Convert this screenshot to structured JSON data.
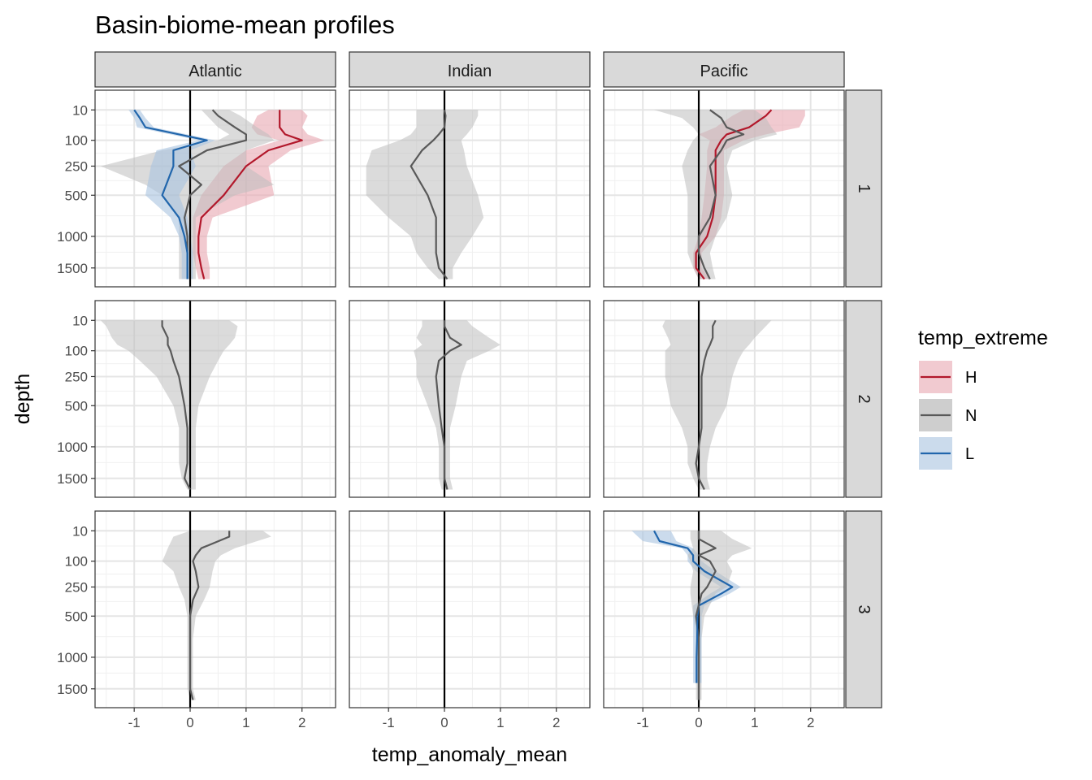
{
  "chart_data": {
    "type": "line",
    "title": "Basin-biome-mean profiles",
    "xlabel": "temp_anomaly_mean",
    "ylabel": "depth",
    "columns": [
      "Atlantic",
      "Indian",
      "Pacific"
    ],
    "rows": [
      "1",
      "2",
      "3"
    ],
    "x_ticks": [
      "-1",
      "0",
      "1",
      "2"
    ],
    "x_tick_values": [
      -1,
      0,
      1,
      2
    ],
    "xlim": [
      -1.7,
      2.6
    ],
    "y_ticks": [
      "10",
      "100",
      "250",
      "500",
      "1000",
      "1500"
    ],
    "y_tick_values": [
      10,
      100,
      250,
      500,
      1000,
      1500
    ],
    "y_scale": "reversed sqrt",
    "ylim": [
      0,
      1800
    ],
    "grid": true,
    "zero_line": true,
    "legend": {
      "title": "temp_extreme",
      "position": "right",
      "entries": [
        {
          "label": "H",
          "color": "#b2182b",
          "fill": "#e7a6b1"
        },
        {
          "label": "N",
          "color": "#595959",
          "fill": "#bdbdbd"
        },
        {
          "label": "L",
          "color": "#2166ac",
          "fill": "#a8c3e0"
        }
      ]
    },
    "panels": [
      {
        "column": "Atlantic",
        "row": "1",
        "series": [
          {
            "name": "H",
            "depth": [
              10,
              20,
              50,
              75,
              100,
              150,
              250,
              500,
              750,
              1000,
              1250,
              1500,
              1700
            ],
            "mean": [
              1.6,
              1.6,
              1.6,
              1.7,
              2.0,
              1.4,
              1.0,
              0.6,
              0.2,
              0.15,
              0.15,
              0.2,
              0.25
            ],
            "lo": [
              1.4,
              1.2,
              1.1,
              1.2,
              1.6,
              1.0,
              0.6,
              0.2,
              0.05,
              0.05,
              0.05,
              0.1,
              0.15
            ],
            "hi": [
              2.0,
              2.1,
              2.0,
              2.1,
              2.4,
              1.8,
              1.4,
              1.5,
              0.4,
              0.3,
              0.3,
              0.35,
              0.35
            ]
          },
          {
            "name": "N",
            "depth": [
              10,
              20,
              50,
              75,
              100,
              150,
              250,
              400,
              500,
              750,
              1000,
              1250,
              1500,
              1700
            ],
            "mean": [
              0.4,
              0.5,
              0.8,
              1.0,
              1.0,
              0.3,
              -0.2,
              0.2,
              0.0,
              -0.1,
              -0.05,
              -0.05,
              -0.05,
              -0.05
            ],
            "lo": [
              0.2,
              0.3,
              0.5,
              0.7,
              0.5,
              -0.5,
              -1.6,
              -0.8,
              -0.5,
              -0.2,
              -0.2,
              -0.2,
              -0.2,
              -0.2
            ],
            "hi": [
              0.7,
              0.9,
              1.2,
              1.4,
              1.5,
              1.0,
              1.0,
              1.5,
              0.8,
              0.1,
              0.1,
              0.1,
              0.1,
              0.1
            ]
          },
          {
            "name": "L",
            "depth": [
              10,
              25,
              50,
              100,
              150,
              250,
              500,
              750,
              1000,
              1250,
              1500,
              1700
            ],
            "mean": [
              -1.0,
              -0.9,
              -0.8,
              0.3,
              -0.3,
              -0.3,
              -0.5,
              -0.2,
              -0.1,
              -0.05,
              -0.05,
              -0.05
            ],
            "lo": [
              -1.1,
              -1.0,
              -0.95,
              0.15,
              -0.6,
              -0.7,
              -0.8,
              -0.35,
              -0.2,
              -0.15,
              -0.15,
              -0.15
            ],
            "hi": [
              -0.9,
              -0.8,
              -0.65,
              0.45,
              0.0,
              0.1,
              -0.2,
              -0.05,
              0.0,
              0.05,
              0.05,
              0.05
            ]
          }
        ]
      },
      {
        "column": "Indian",
        "row": "1",
        "series": [
          {
            "name": "N",
            "depth": [
              10,
              20,
              50,
              75,
              100,
              150,
              250,
              500,
              750,
              1000,
              1250,
              1500,
              1700
            ],
            "mean": [
              0.0,
              0.02,
              0.0,
              -0.1,
              -0.2,
              -0.4,
              -0.6,
              -0.3,
              -0.15,
              -0.15,
              -0.15,
              -0.1,
              0.05
            ],
            "lo": [
              -0.5,
              -0.5,
              -0.5,
              -0.6,
              -0.8,
              -1.3,
              -1.4,
              -1.4,
              -1.0,
              -0.6,
              -0.5,
              -0.3,
              -0.1
            ],
            "hi": [
              0.6,
              0.6,
              0.5,
              0.4,
              0.3,
              0.35,
              0.4,
              0.6,
              0.7,
              0.5,
              0.3,
              0.15,
              0.15
            ]
          }
        ]
      },
      {
        "column": "Pacific",
        "row": "1",
        "series": [
          {
            "name": "H",
            "depth": [
              10,
              20,
              50,
              75,
              100,
              150,
              250,
              500,
              750,
              1000,
              1250,
              1500,
              1700
            ],
            "mean": [
              1.3,
              1.2,
              0.9,
              0.5,
              0.4,
              0.3,
              0.3,
              0.3,
              0.25,
              0.15,
              -0.05,
              -0.05,
              0.1
            ],
            "lo": [
              0.8,
              0.6,
              0.3,
              0.0,
              0.2,
              0.15,
              0.15,
              0.1,
              0.05,
              0.0,
              -0.1,
              -0.1,
              0.0
            ],
            "hi": [
              1.9,
              1.9,
              1.8,
              1.2,
              0.8,
              0.45,
              0.45,
              0.45,
              0.4,
              0.3,
              0.05,
              0.05,
              0.2
            ]
          },
          {
            "name": "N",
            "depth": [
              10,
              25,
              50,
              75,
              100,
              150,
              250,
              500,
              750,
              1000,
              1250,
              1500,
              1700
            ],
            "mean": [
              0.2,
              0.4,
              0.5,
              0.8,
              0.5,
              0.4,
              0.2,
              0.3,
              0.2,
              0.0,
              0.0,
              0.1,
              0.2
            ],
            "lo": [
              -0.8,
              -0.3,
              -0.1,
              0.0,
              -0.1,
              -0.2,
              -0.3,
              -0.2,
              -0.2,
              -0.2,
              -0.2,
              -0.1,
              0.0
            ],
            "hi": [
              1.0,
              1.2,
              1.3,
              1.4,
              1.0,
              0.6,
              0.5,
              0.6,
              0.5,
              0.3,
              0.2,
              0.25,
              0.3
            ]
          }
        ]
      },
      {
        "column": "Atlantic",
        "row": "2",
        "series": [
          {
            "name": "N",
            "depth": [
              10,
              20,
              50,
              75,
              100,
              150,
              250,
              500,
              750,
              1000,
              1250,
              1500,
              1700
            ],
            "mean": [
              -0.5,
              -0.5,
              -0.4,
              -0.4,
              -0.35,
              -0.3,
              -0.2,
              -0.1,
              -0.05,
              -0.05,
              -0.05,
              -0.1,
              0.0
            ],
            "lo": [
              -1.6,
              -1.5,
              -1.4,
              -1.3,
              -1.1,
              -0.9,
              -0.6,
              -0.3,
              -0.2,
              -0.2,
              -0.2,
              -0.15,
              -0.05
            ],
            "hi": [
              0.7,
              0.85,
              0.8,
              0.7,
              0.6,
              0.5,
              0.35,
              0.15,
              0.1,
              0.1,
              0.1,
              0.1,
              0.1
            ]
          }
        ]
      },
      {
        "column": "Indian",
        "row": "2",
        "series": [
          {
            "name": "N",
            "depth": [
              10,
              20,
              50,
              75,
              100,
              150,
              250,
              500,
              750,
              1000,
              1250,
              1500,
              1700
            ],
            "mean": [
              0.0,
              0.0,
              0.1,
              0.3,
              0.1,
              -0.1,
              -0.15,
              -0.1,
              -0.05,
              0.0,
              0.0,
              0.0,
              0.05
            ],
            "lo": [
              -0.4,
              -0.4,
              -0.5,
              -0.4,
              -0.55,
              -0.5,
              -0.5,
              -0.3,
              -0.15,
              -0.1,
              -0.1,
              -0.1,
              -0.05
            ],
            "hi": [
              0.4,
              0.5,
              0.8,
              1.0,
              0.8,
              0.4,
              0.3,
              0.2,
              0.1,
              0.1,
              0.1,
              0.1,
              0.15
            ]
          }
        ]
      },
      {
        "column": "Pacific",
        "row": "2",
        "series": [
          {
            "name": "N",
            "depth": [
              10,
              20,
              50,
              75,
              100,
              150,
              250,
              500,
              750,
              1000,
              1250,
              1500,
              1700
            ],
            "mean": [
              0.3,
              0.25,
              0.25,
              0.2,
              0.15,
              0.1,
              0.05,
              0.05,
              0.05,
              0.0,
              -0.05,
              0.0,
              0.1
            ],
            "lo": [
              -0.6,
              -0.65,
              -0.55,
              -0.5,
              -0.6,
              -0.6,
              -0.6,
              -0.5,
              -0.3,
              -0.2,
              -0.2,
              -0.1,
              0.0
            ],
            "hi": [
              1.3,
              1.2,
              1.0,
              0.9,
              0.8,
              0.7,
              0.6,
              0.5,
              0.3,
              0.2,
              0.15,
              0.15,
              0.2
            ]
          }
        ]
      },
      {
        "column": "Atlantic",
        "row": "3",
        "series": [
          {
            "name": "N",
            "depth": [
              10,
              20,
              50,
              75,
              100,
              150,
              250,
              350,
              500,
              750,
              1000,
              1250,
              1500,
              1700
            ],
            "mean": [
              0.7,
              0.7,
              0.2,
              0.1,
              0.05,
              0.1,
              0.15,
              0.05,
              0.0,
              0.0,
              0.0,
              0.0,
              0.0,
              0.05
            ],
            "lo": [
              0.0,
              -0.3,
              -0.4,
              -0.45,
              -0.5,
              -0.3,
              -0.2,
              -0.1,
              -0.05,
              -0.05,
              -0.05,
              -0.05,
              -0.05,
              0.0
            ],
            "hi": [
              1.3,
              1.45,
              0.8,
              0.55,
              0.45,
              0.4,
              0.35,
              0.25,
              0.1,
              0.05,
              0.05,
              0.05,
              0.05,
              0.1
            ]
          }
        ]
      },
      {
        "column": "Indian",
        "row": "3",
        "series": []
      },
      {
        "column": "Pacific",
        "row": "3",
        "series": [
          {
            "name": "L",
            "depth": [
              10,
              30,
              50,
              75,
              100,
              150,
              250,
              300,
              400,
              500
            ],
            "mean": [
              -0.8,
              -0.7,
              -0.2,
              -0.1,
              -0.1,
              0.1,
              0.6,
              0.4,
              0.0,
              -0.02
            ],
            "lo": [
              -1.2,
              -1.0,
              -0.3,
              -0.2,
              -0.2,
              -0.05,
              0.4,
              0.2,
              -0.1,
              -0.1
            ],
            "hi": [
              -0.5,
              -0.4,
              -0.1,
              0.0,
              0.05,
              0.3,
              0.75,
              0.55,
              0.1,
              0.05
            ]
          },
          {
            "name": "N",
            "depth": [
              10,
              25,
              50,
              75,
              100,
              150,
              250,
              300,
              500,
              750,
              1000,
              1250,
              1500,
              1700
            ],
            "mean": [
              0.0,
              0.0,
              0.3,
              0.0,
              0.2,
              0.3,
              0.15,
              0.05,
              -0.05,
              0.0,
              0.0,
              0.0,
              0.0,
              0.0
            ],
            "lo": [
              -0.15,
              -0.15,
              -0.1,
              -0.2,
              -0.15,
              -0.1,
              -0.15,
              -0.15,
              -0.1,
              -0.05,
              -0.05,
              -0.05,
              -0.05,
              -0.05
            ],
            "hi": [
              0.4,
              0.6,
              0.95,
              0.6,
              0.5,
              0.6,
              0.5,
              0.3,
              0.1,
              0.05,
              0.05,
              0.05,
              0.05,
              0.05
            ]
          },
          {
            "name": "L",
            "depth": [
              500,
              750,
              1000,
              1250,
              1400
            ],
            "mean": [
              -0.02,
              -0.03,
              -0.04,
              -0.04,
              -0.04
            ],
            "lo": [
              -0.1,
              -0.1,
              -0.1,
              -0.1,
              -0.1
            ],
            "hi": [
              0.05,
              0.05,
              0.05,
              0.05,
              0.05
            ]
          }
        ]
      }
    ]
  }
}
